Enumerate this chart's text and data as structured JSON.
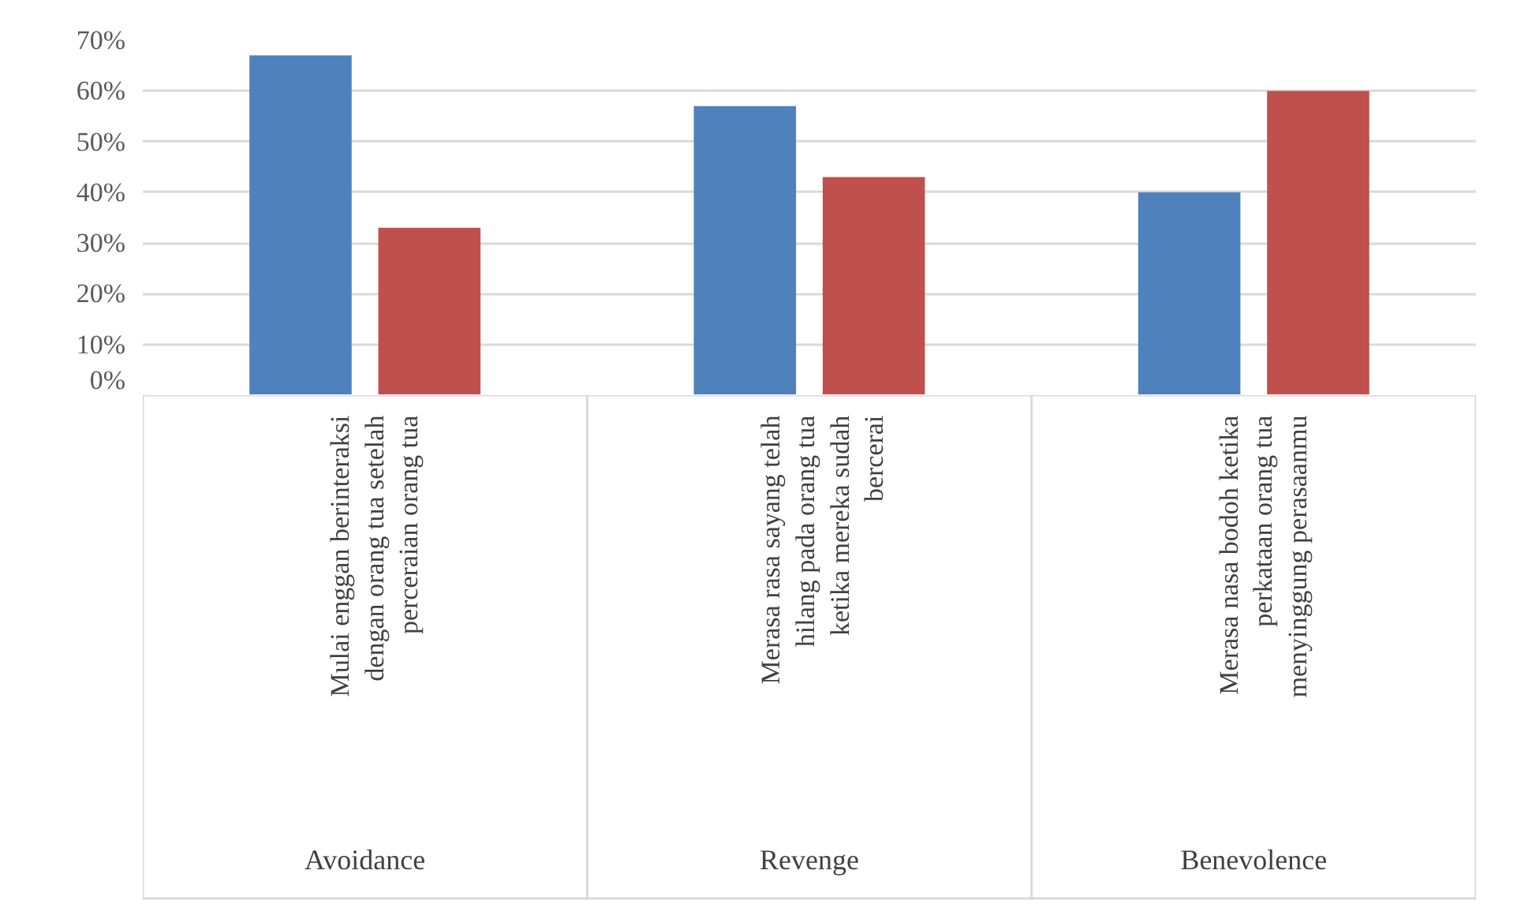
{
  "chart_data": {
    "type": "bar",
    "categories": [
      "Mulai enggan berinteraksi dengan orang tua setelah perceraian orang tua",
      "Merasa rasa sayang telah hilang pada orang tua ketika mereka sudah bercerai",
      "Merasa nasa bodoh ketika perkataan orang tua menyinggung perasaanmu"
    ],
    "series": [
      {
        "color": "#4f81bd",
        "values": [
          67,
          57,
          40
        ]
      },
      {
        "color": "#c0504d",
        "values": [
          33,
          43,
          60
        ]
      }
    ],
    "annotations": [
      "Avoidance",
      "Revenge",
      "Benevolence"
    ],
    "ylim": [
      0,
      70
    ],
    "yticks": [
      {
        "value": 0,
        "label": "0%"
      },
      {
        "value": 10,
        "label": "10%"
      },
      {
        "value": 20,
        "label": "20%"
      },
      {
        "value": 30,
        "label": "30%"
      },
      {
        "value": 40,
        "label": "40%"
      },
      {
        "value": 50,
        "label": "50%"
      },
      {
        "value": 60,
        "label": "60%"
      },
      {
        "value": 70,
        "label": "70%"
      }
    ],
    "grid": "y"
  }
}
